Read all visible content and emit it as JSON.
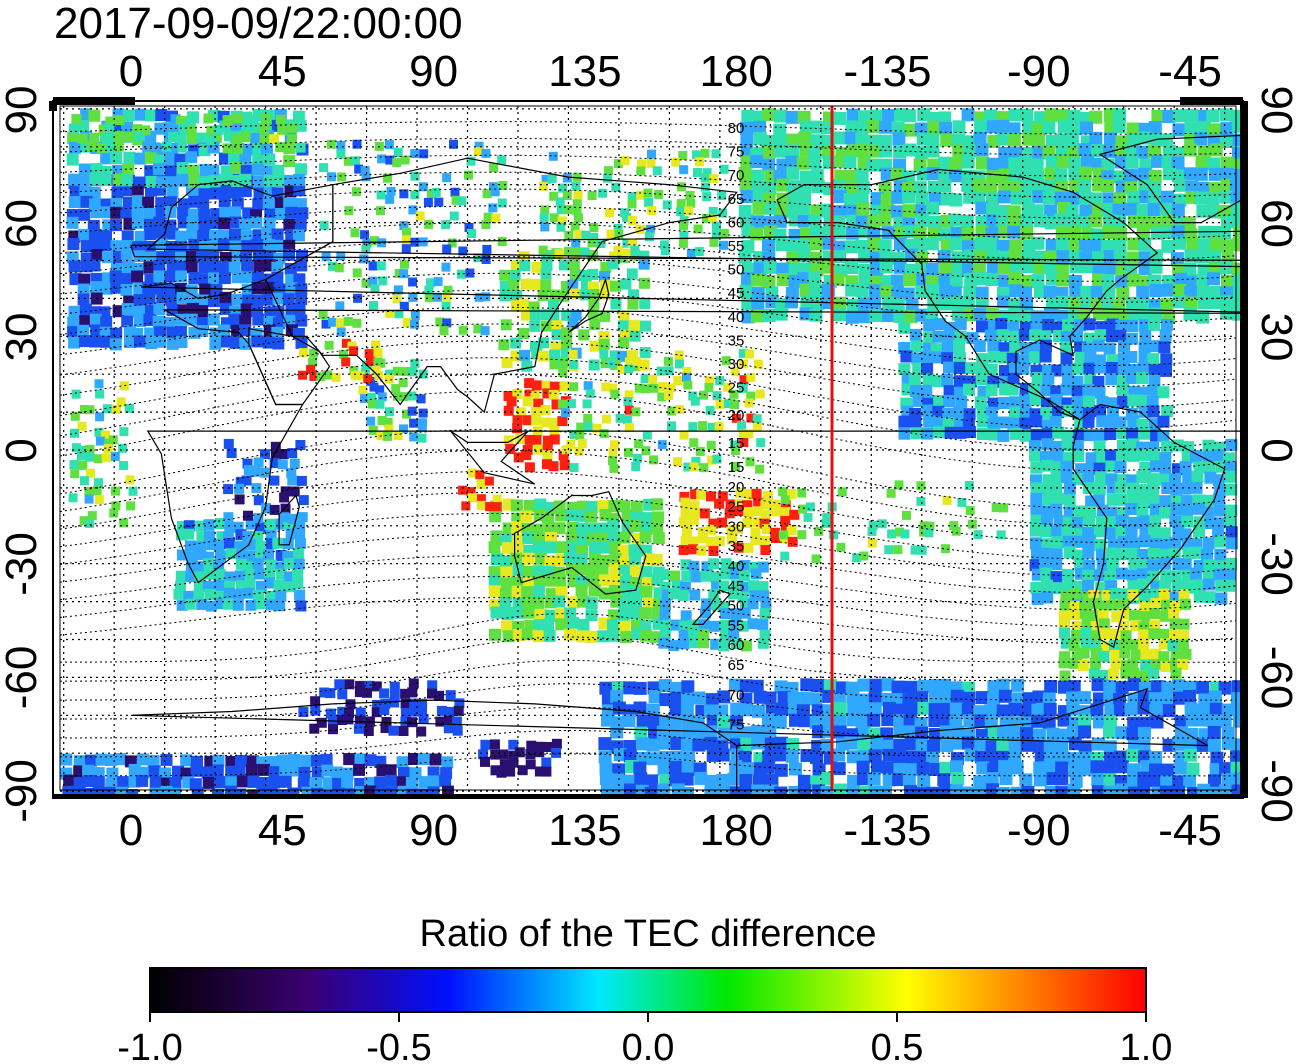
{
  "map": {
    "timestamp": "2017-09-09/22:00:00",
    "longitude_labels": [
      "0",
      "45",
      "90",
      "135",
      "180",
      "-135",
      "-90",
      "-45"
    ],
    "latitude_labels": [
      "90",
      "60",
      "30",
      "0",
      "-30",
      "-60",
      "-90"
    ],
    "magnetic_latitude_labels": {
      "north": [
        "80",
        "75",
        "70",
        "65",
        "60",
        "55",
        "50",
        "45",
        "40",
        "35",
        "30",
        "25",
        "20",
        "15"
      ],
      "south": [
        "15",
        "20",
        "25",
        "30",
        "35",
        "40",
        "45",
        "50",
        "55",
        "60",
        "65",
        "70",
        "75"
      ]
    },
    "terminator_longitude": -150,
    "terminator_color": "#e01010"
  },
  "colorbar": {
    "title": "Ratio of the TEC difference",
    "tick_labels": [
      "-1.0",
      "-0.5",
      "0.0",
      "0.5",
      "1.0"
    ],
    "stops": [
      "#000000",
      "#3a0070",
      "#0010ff",
      "#00e8ff",
      "#00e800",
      "#ffff00",
      "#ff0000"
    ]
  },
  "palette": {
    "deep_negative": "#2a1070",
    "negative": "#1a50f0",
    "mild_negative": "#30a8ff",
    "neutral": "#30e0b0",
    "mild_positive": "#60e040",
    "positive": "#e8e820",
    "strong_positive": "#ff2010"
  }
}
